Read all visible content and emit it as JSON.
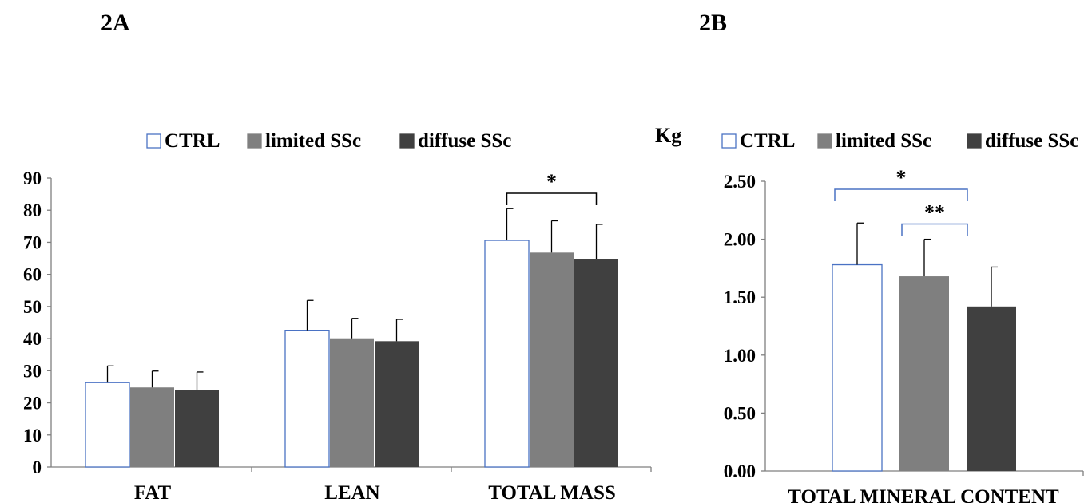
{
  "colors": {
    "ctrl_fill": "#ffffff",
    "ctrl_stroke": "#4a72c4",
    "limited": "#7f7f7f",
    "diffuse": "#404040",
    "axis": "#7f7f7f",
    "text": "#000000"
  },
  "chart_data": [
    {
      "type": "bar",
      "panel_label": "2A",
      "ylabel": "",
      "ylim": [
        0,
        90
      ],
      "yticks": [
        "0",
        "10",
        "20",
        "30",
        "40",
        "50",
        "60",
        "70",
        "80",
        "90"
      ],
      "categories": [
        "FAT",
        "LEAN",
        "TOTAL MASS"
      ],
      "legend_position": "top",
      "series": [
        {
          "name": "CTRL",
          "values": [
            26.3,
            42.6,
            70.6
          ],
          "errors": [
            5.2,
            9.3,
            9.9
          ]
        },
        {
          "name": "limited SSc",
          "values": [
            24.8,
            40.1,
            66.8
          ],
          "errors": [
            5.1,
            6.2,
            9.9
          ]
        },
        {
          "name": "diffuse SSc",
          "values": [
            24.0,
            39.2,
            64.7
          ],
          "errors": [
            5.6,
            6.8,
            10.9
          ]
        }
      ],
      "significance": [
        {
          "label": "*",
          "category": "TOTAL MASS",
          "from_series": 0,
          "to_series": 2,
          "level": 89
        }
      ]
    },
    {
      "type": "bar",
      "panel_label": "2B",
      "ylabel": "Kg",
      "ylim": [
        0,
        2.5
      ],
      "yticks": [
        "0.00",
        "0.50",
        "1.00",
        "1.50",
        "2.00",
        "2.50"
      ],
      "categories": [
        "TOTAL  MINERAL CONTENT"
      ],
      "legend_position": "top",
      "series": [
        {
          "name": "CTRL",
          "values": [
            1.78
          ],
          "errors": [
            0.36
          ]
        },
        {
          "name": "limited SSc",
          "values": [
            1.68
          ],
          "errors": [
            0.32
          ]
        },
        {
          "name": "diffuse SSc",
          "values": [
            1.42
          ],
          "errors": [
            0.34
          ]
        }
      ],
      "significance": [
        {
          "label": "*",
          "category": "TOTAL  MINERAL CONTENT",
          "from_series": 0,
          "to_series": 2,
          "level": 2.5
        },
        {
          "label": "**",
          "category": "TOTAL  MINERAL CONTENT",
          "from_series": 1,
          "to_series": 2,
          "level": 2.2
        }
      ]
    }
  ]
}
